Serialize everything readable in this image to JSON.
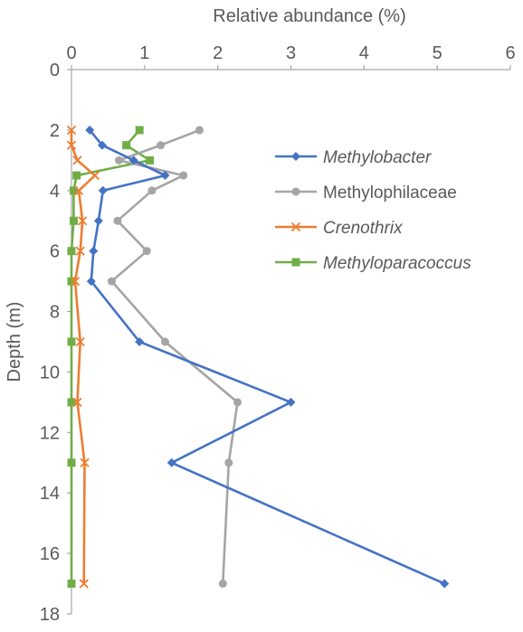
{
  "chart_data": {
    "type": "line",
    "xlabel": "Relative abundance (%)",
    "ylabel": "Depth (m)",
    "xlim": [
      0,
      6
    ],
    "ylim": [
      0,
      18
    ],
    "x_ticks": [
      0,
      1,
      2,
      3,
      4,
      5,
      6
    ],
    "y_ticks": [
      0,
      2,
      4,
      6,
      8,
      10,
      12,
      14,
      16,
      18
    ],
    "x_axis_position": "top",
    "y_axis_inverted": true,
    "grid": false,
    "legend_position": "right",
    "series": [
      {
        "name": "Methylobacter",
        "italic": true,
        "color": "#4472C4",
        "marker": "diamond",
        "points": [
          {
            "x": 0.25,
            "depth": 2.0
          },
          {
            "x": 0.42,
            "depth": 2.5
          },
          {
            "x": 0.85,
            "depth": 3.0
          },
          {
            "x": 1.28,
            "depth": 3.5
          },
          {
            "x": 0.43,
            "depth": 4.0
          },
          {
            "x": 0.37,
            "depth": 5.0
          },
          {
            "x": 0.3,
            "depth": 6.0
          },
          {
            "x": 0.27,
            "depth": 7.0
          },
          {
            "x": 0.93,
            "depth": 9.0
          },
          {
            "x": 3.0,
            "depth": 11.0
          },
          {
            "x": 1.37,
            "depth": 13.0
          },
          {
            "x": 5.1,
            "depth": 17.0
          }
        ]
      },
      {
        "name": "Methylophilaceae",
        "italic": false,
        "color": "#A5A5A5",
        "marker": "circle",
        "points": [
          {
            "x": 1.75,
            "depth": 2.0
          },
          {
            "x": 1.22,
            "depth": 2.5
          },
          {
            "x": 0.65,
            "depth": 3.0
          },
          {
            "x": 1.53,
            "depth": 3.5
          },
          {
            "x": 1.1,
            "depth": 4.0
          },
          {
            "x": 0.63,
            "depth": 5.0
          },
          {
            "x": 1.03,
            "depth": 6.0
          },
          {
            "x": 0.55,
            "depth": 7.0
          },
          {
            "x": 1.28,
            "depth": 9.0
          },
          {
            "x": 2.27,
            "depth": 11.0
          },
          {
            "x": 2.15,
            "depth": 13.0
          },
          {
            "x": 2.07,
            "depth": 17.0
          }
        ]
      },
      {
        "name": "Crenothrix",
        "italic": true,
        "color": "#ED7D31",
        "marker": "x",
        "points": [
          {
            "x": 0.0,
            "depth": 2.0
          },
          {
            "x": 0.0,
            "depth": 2.5
          },
          {
            "x": 0.08,
            "depth": 3.0
          },
          {
            "x": 0.32,
            "depth": 3.5
          },
          {
            "x": 0.1,
            "depth": 4.0
          },
          {
            "x": 0.15,
            "depth": 5.0
          },
          {
            "x": 0.12,
            "depth": 6.0
          },
          {
            "x": 0.05,
            "depth": 7.0
          },
          {
            "x": 0.12,
            "depth": 9.0
          },
          {
            "x": 0.08,
            "depth": 11.0
          },
          {
            "x": 0.18,
            "depth": 13.0
          },
          {
            "x": 0.17,
            "depth": 17.0
          }
        ]
      },
      {
        "name": "Methyloparacoccus",
        "italic": true,
        "color": "#70AD47",
        "marker": "square",
        "points": [
          {
            "x": 0.93,
            "depth": 2.0
          },
          {
            "x": 0.75,
            "depth": 2.5
          },
          {
            "x": 1.07,
            "depth": 3.0
          },
          {
            "x": 0.07,
            "depth": 3.5
          },
          {
            "x": 0.03,
            "depth": 4.0
          },
          {
            "x": 0.03,
            "depth": 5.0
          },
          {
            "x": 0.0,
            "depth": 6.0
          },
          {
            "x": 0.0,
            "depth": 7.0
          },
          {
            "x": 0.0,
            "depth": 9.0
          },
          {
            "x": 0.0,
            "depth": 11.0
          },
          {
            "x": 0.0,
            "depth": 13.0
          },
          {
            "x": 0.0,
            "depth": 17.0
          }
        ]
      }
    ]
  }
}
